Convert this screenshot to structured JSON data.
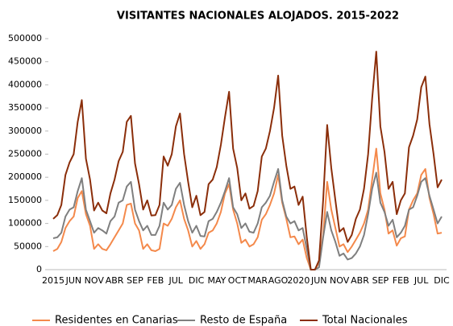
{
  "chart_data": {
    "type": "line",
    "title": "VISITANTES NACIONALES ALOJADOS. 2015-2022",
    "categories": [
      "2015",
      null,
      null,
      null,
      null,
      "JUN",
      null,
      null,
      null,
      null,
      "NOV",
      null,
      null,
      null,
      null,
      "ABR",
      null,
      null,
      null,
      null,
      "SEP",
      null,
      null,
      null,
      null,
      "FEB",
      null,
      null,
      null,
      null,
      "JUL",
      null,
      null,
      null,
      null,
      "DIC",
      null,
      null,
      null,
      null,
      "MAY",
      null,
      null,
      null,
      null,
      "OCT",
      null,
      null,
      null,
      null,
      "MAR",
      null,
      null,
      null,
      null,
      "AGO",
      null,
      null,
      null,
      null,
      "2020",
      null,
      null,
      null,
      null,
      "JUN",
      null,
      null,
      null,
      null,
      "NOV",
      null,
      null,
      null,
      null,
      "ABR",
      null,
      null,
      null,
      null,
      "SEP",
      null,
      null,
      null,
      null,
      "FEB",
      null,
      null,
      null,
      null,
      "JUL",
      null,
      null,
      null,
      null,
      "DIC"
    ],
    "ylim": [
      0,
      500000
    ],
    "yticks": [
      0,
      50000,
      100000,
      150000,
      200000,
      250000,
      300000,
      350000,
      400000,
      450000,
      500000
    ],
    "series": [
      {
        "name": "Residentes en Canarias",
        "color": "#f4894b",
        "values": [
          40000,
          45000,
          60000,
          90000,
          105000,
          115000,
          155000,
          170000,
          120000,
          95000,
          45000,
          55000,
          45000,
          42000,
          55000,
          70000,
          85000,
          100000,
          140000,
          143000,
          100000,
          85000,
          45000,
          55000,
          42000,
          40000,
          45000,
          100000,
          95000,
          110000,
          135000,
          150000,
          110000,
          85000,
          50000,
          62000,
          45000,
          55000,
          80000,
          85000,
          100000,
          125000,
          165000,
          185000,
          130000,
          100000,
          58000,
          65000,
          50000,
          55000,
          70000,
          108000,
          120000,
          140000,
          165000,
          205000,
          145000,
          110000,
          70000,
          72000,
          55000,
          65000,
          25000,
          0,
          0,
          15000,
          75000,
          190000,
          130000,
          90000,
          50000,
          55000,
          38000,
          50000,
          65000,
          80000,
          100000,
          130000,
          195000,
          262000,
          165000,
          130000,
          78000,
          85000,
          52000,
          68000,
          72000,
          130000,
          150000,
          165000,
          205000,
          218000,
          155000,
          120000,
          78000,
          80000
        ]
      },
      {
        "name": "Resto de España",
        "color": "#7f7f7f",
        "values": [
          68000,
          70000,
          80000,
          115000,
          130000,
          135000,
          170000,
          198000,
          130000,
          105000,
          80000,
          90000,
          85000,
          78000,
          105000,
          115000,
          145000,
          150000,
          180000,
          190000,
          130000,
          105000,
          85000,
          95000,
          75000,
          75000,
          95000,
          145000,
          130000,
          140000,
          175000,
          188000,
          140000,
          105000,
          80000,
          95000,
          73000,
          72000,
          105000,
          110000,
          125000,
          145000,
          170000,
          198000,
          135000,
          120000,
          90000,
          100000,
          82000,
          80000,
          100000,
          135000,
          145000,
          160000,
          190000,
          218000,
          150000,
          115000,
          100000,
          105000,
          85000,
          90000,
          45000,
          0,
          0,
          5000,
          70000,
          125000,
          85000,
          60000,
          30000,
          35000,
          22000,
          25000,
          35000,
          50000,
          75000,
          120000,
          175000,
          210000,
          145000,
          125000,
          95000,
          108000,
          70000,
          80000,
          95000,
          130000,
          135000,
          160000,
          190000,
          198000,
          160000,
          130000,
          100000,
          115000
        ]
      },
      {
        "name": "Total Nacionales",
        "color": "#8b2e0a",
        "values": [
          110000,
          118000,
          140000,
          205000,
          232000,
          250000,
          320000,
          367000,
          240000,
          195000,
          128000,
          145000,
          128000,
          122000,
          165000,
          195000,
          235000,
          255000,
          320000,
          333000,
          230000,
          185000,
          130000,
          150000,
          117000,
          118000,
          140000,
          245000,
          225000,
          250000,
          310000,
          338000,
          250000,
          190000,
          135000,
          160000,
          118000,
          125000,
          185000,
          195000,
          222000,
          270000,
          330000,
          385000,
          262000,
          220000,
          150000,
          165000,
          132000,
          138000,
          170000,
          245000,
          262000,
          300000,
          350000,
          420000,
          290000,
          225000,
          175000,
          180000,
          140000,
          158000,
          70000,
          0,
          0,
          20000,
          150000,
          313000,
          220000,
          150000,
          82000,
          90000,
          60000,
          75000,
          110000,
          130000,
          175000,
          250000,
          370000,
          472000,
          310000,
          255000,
          175000,
          190000,
          120000,
          150000,
          165000,
          265000,
          290000,
          325000,
          395000,
          418000,
          315000,
          250000,
          178000,
          195000
        ]
      }
    ]
  }
}
